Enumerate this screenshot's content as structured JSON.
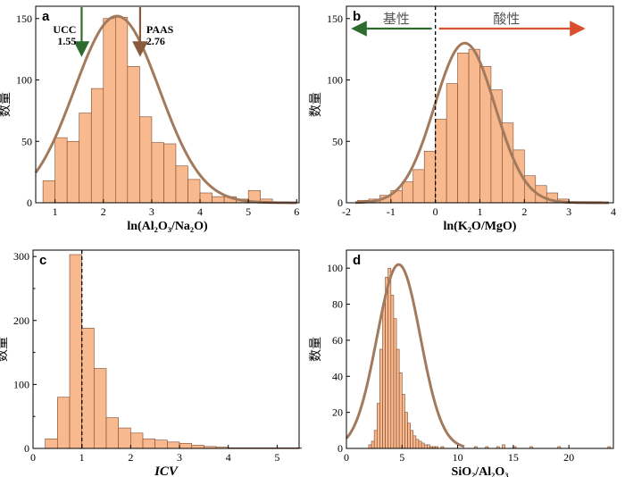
{
  "colors": {
    "bar_fill": "#f9b98e",
    "bar_stroke": "#7a4a2e",
    "curve": "#a27a5e",
    "green_arrow": "#2e6b2e",
    "brown_arrow": "#8b5a3c",
    "red_arrow": "#d9502e"
  },
  "chart_data": [
    {
      "panel": "a",
      "type": "bar",
      "xlabel": "ln(Al₂O₃/Na₂O)",
      "ylabel": "数量",
      "xlim": [
        0.6,
        6.05
      ],
      "ylim": [
        0,
        160
      ],
      "xticks": [
        "1",
        "2",
        "3",
        "4",
        "5",
        "6"
      ],
      "xtick_values": [
        1,
        2,
        3,
        4,
        5,
        6
      ],
      "yticks": [
        "0",
        "50",
        "100",
        "150"
      ],
      "ytick_values": [
        0,
        50,
        100,
        150
      ],
      "bin_width": 0.25,
      "bin_starts": [
        0.75,
        1.0,
        1.25,
        1.5,
        1.75,
        2.0,
        2.25,
        2.5,
        2.75,
        3.0,
        3.25,
        3.5,
        3.75,
        4.0,
        4.25,
        4.5,
        4.75,
        5.0,
        5.25
      ],
      "values": [
        18,
        53,
        50,
        73,
        93,
        150,
        151,
        111,
        70,
        49,
        48,
        30,
        19,
        8,
        5,
        5,
        3,
        10,
        3
      ],
      "curve": {
        "mean": 2.28,
        "sd": 0.88,
        "peak": 152,
        "x_from": 0.6,
        "x_to": 6.0
      },
      "annotations": [
        {
          "text_line1": "UCC",
          "text_line2": "1.55",
          "x": 1.55,
          "color_key": "green_arrow"
        },
        {
          "text_line1": "PAAS",
          "text_line2": "2.76",
          "x": 2.76,
          "color_key": "brown_arrow"
        }
      ]
    },
    {
      "panel": "b",
      "type": "bar",
      "xlabel": "ln(K₂O/MgO)",
      "ylabel": "数量",
      "xlim": [
        -2,
        4
      ],
      "ylim": [
        0,
        160
      ],
      "xticks": [
        "-2",
        "-1",
        "0",
        "1",
        "2",
        "3",
        "4"
      ],
      "xtick_values": [
        -2,
        -1,
        0,
        1,
        2,
        3,
        4
      ],
      "yticks": [
        "0",
        "50",
        "100",
        "150"
      ],
      "ytick_values": [
        0,
        50,
        100,
        150
      ],
      "bin_width": 0.25,
      "bin_starts": [
        -1.75,
        -1.5,
        -1.25,
        -1.0,
        -0.75,
        -0.5,
        -0.25,
        0.0,
        0.25,
        0.5,
        0.75,
        1.0,
        1.25,
        1.5,
        1.75,
        2.0,
        2.25,
        2.5,
        2.75,
        3.0,
        3.25,
        3.5
      ],
      "values": [
        2,
        3,
        6,
        10,
        17,
        27,
        42,
        68,
        97,
        122,
        125,
        111,
        92,
        65,
        43,
        22,
        14,
        8,
        3,
        1,
        1,
        1
      ],
      "curve": {
        "mean": 0.66,
        "sd": 0.68,
        "peak": 130,
        "x_from": -1.8,
        "x_to": 3.9
      },
      "divider_x": 0,
      "regions": [
        {
          "label": "基性",
          "side": "left"
        },
        {
          "label": "酸性",
          "side": "right"
        }
      ]
    },
    {
      "panel": "c",
      "type": "bar",
      "xlabel": "ICV",
      "ylabel": "数量",
      "xlim": [
        0,
        5.45
      ],
      "ylim": [
        0,
        310
      ],
      "xticks": [
        "0",
        "1",
        "2",
        "3",
        "4",
        "5"
      ],
      "xtick_values": [
        0,
        1,
        2,
        3,
        4,
        5
      ],
      "yticks": [
        "0",
        "100",
        "200",
        "300"
      ],
      "ytick_values": [
        0,
        100,
        200,
        300
      ],
      "yticks_minor": [
        50,
        150,
        250
      ],
      "bin_width": 0.25,
      "bin_starts": [
        0.25,
        0.5,
        0.75,
        1.0,
        1.25,
        1.5,
        1.75,
        2.0,
        2.25,
        2.5,
        2.75,
        3.0,
        3.25,
        3.5,
        3.75,
        4.0,
        4.25,
        4.5,
        4.75,
        5.0,
        5.25
      ],
      "values": [
        15,
        80,
        303,
        188,
        125,
        48,
        32,
        24,
        15,
        13,
        10,
        8,
        5,
        3,
        2,
        1,
        1,
        1,
        1,
        1,
        1
      ],
      "divider_x": 1
    },
    {
      "panel": "d",
      "type": "bar",
      "xlabel": "SiO₂/Al₂O₃",
      "ylabel": "数量",
      "xlim": [
        0,
        24
      ],
      "ylim": [
        0,
        110
      ],
      "xticks": [
        "0",
        "5",
        "10",
        "15",
        "20"
      ],
      "xtick_values": [
        0,
        5,
        10,
        15,
        20
      ],
      "yticks": [
        "0",
        "20",
        "40",
        "60",
        "80",
        "100"
      ],
      "ytick_values": [
        0,
        20,
        40,
        60,
        80,
        100
      ],
      "bin_width": 0.25,
      "bin_starts": [
        2.0,
        2.25,
        2.5,
        2.75,
        3.0,
        3.25,
        3.5,
        3.75,
        4.0,
        4.25,
        4.5,
        4.75,
        5.0,
        5.25,
        5.5,
        5.75,
        6.0,
        6.25,
        6.5,
        6.75,
        7.0,
        7.25,
        7.5,
        7.75,
        8.0,
        8.5,
        11.5,
        12.5,
        13.5,
        14.0,
        15.0,
        16.5,
        19.0,
        23.5
      ],
      "values": [
        2,
        4,
        10,
        25,
        55,
        80,
        95,
        100,
        85,
        72,
        55,
        42,
        30,
        20,
        14,
        10,
        7,
        5,
        4,
        3,
        2,
        2,
        1,
        1,
        1,
        1,
        1,
        1,
        1,
        2,
        1,
        1,
        1,
        1
      ],
      "curve": {
        "mean": 4.7,
        "sd": 1.95,
        "peak": 102,
        "x_from": 0,
        "x_to": 10.6
      }
    }
  ]
}
